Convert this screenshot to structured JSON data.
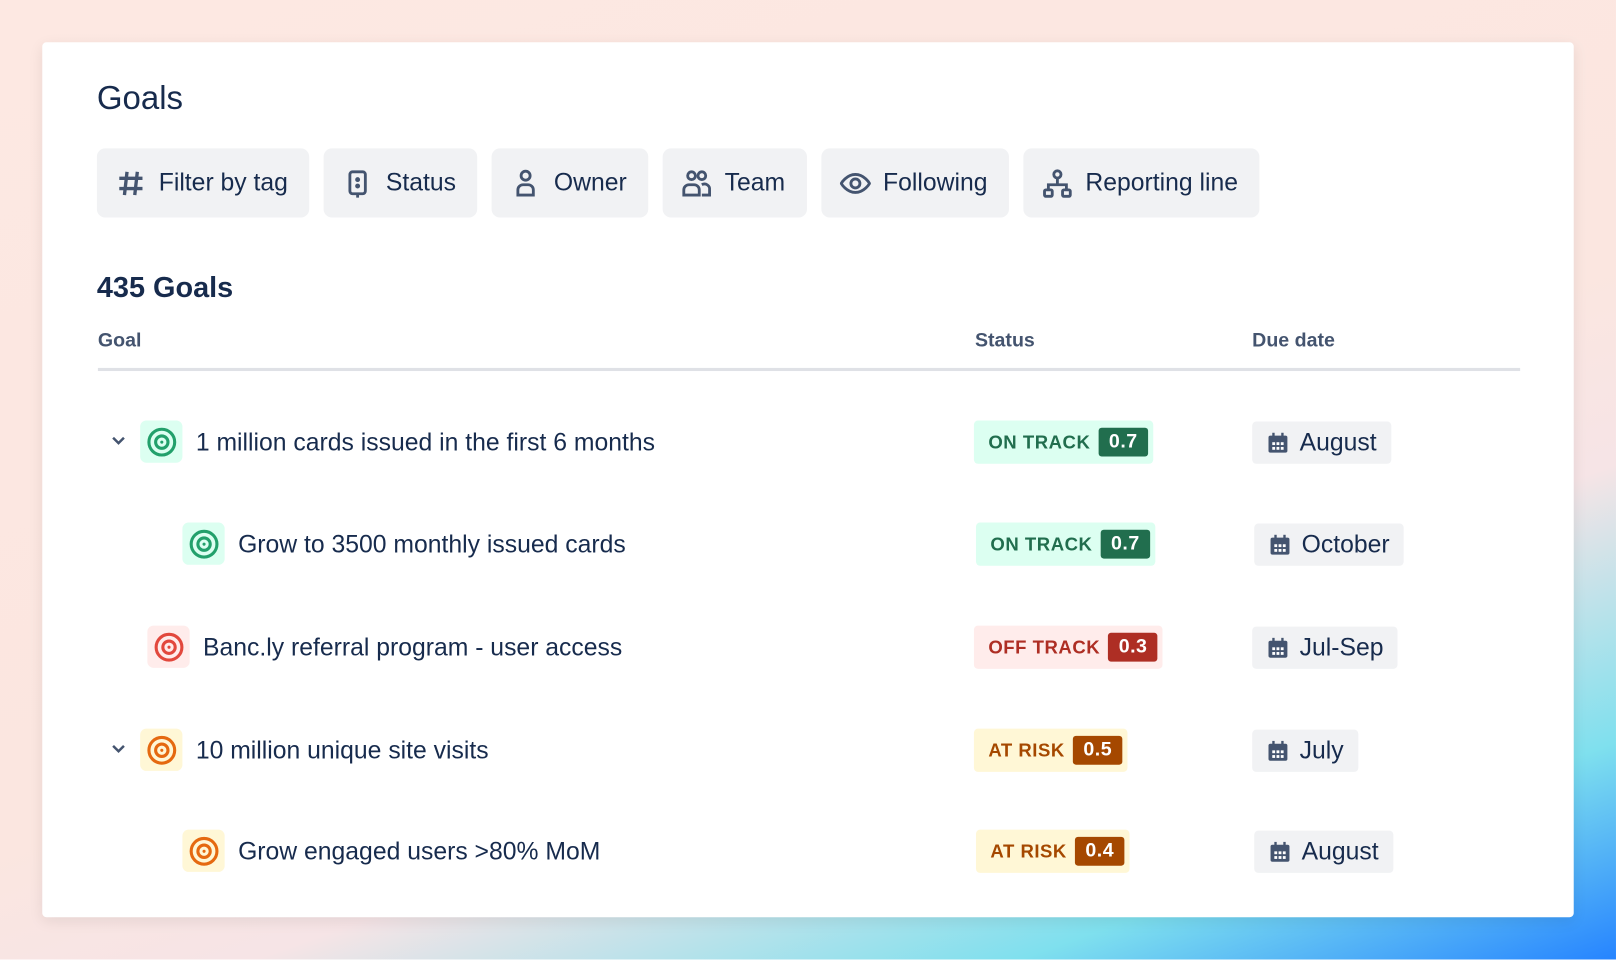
{
  "title": "Goals",
  "filters": [
    {
      "label": "Filter by tag",
      "icon": "hash-icon"
    },
    {
      "label": "Status",
      "icon": "status-icon"
    },
    {
      "label": "Owner",
      "icon": "person-icon"
    },
    {
      "label": "Team",
      "icon": "people-icon"
    },
    {
      "label": "Following",
      "icon": "eye-icon"
    },
    {
      "label": "Reporting line",
      "icon": "hierarchy-icon"
    }
  ],
  "count": "435 Goals",
  "columns": {
    "goal": "Goal",
    "status": "Status",
    "due": "Due date"
  },
  "goals": [
    {
      "name": "1 million cards issued in the first 6 months",
      "status": "ON TRACK",
      "score": "0.7",
      "due": "August",
      "color": "#1f845a",
      "level": 0,
      "expandable": true
    },
    {
      "name": "Grow to 3500 monthly issued cards",
      "status": "ON TRACK",
      "score": "0.7",
      "due": "October",
      "color": "#1f845a",
      "level": 1,
      "expandable": false
    },
    {
      "name": "Banc.ly referral program - user access",
      "status": "OFF TRACK",
      "score": "0.3",
      "due": "Jul-Sep",
      "color": "#c9372c",
      "level": 0.5,
      "expandable": false
    },
    {
      "name": "10 million unique site visits",
      "status": "AT RISK",
      "score": "0.5",
      "due": "July",
      "color": "#b65c02",
      "level": 0,
      "expandable": true
    },
    {
      "name": "Grow engaged users >80% MoM",
      "status": "AT RISK",
      "score": "0.4",
      "due": "August",
      "color": "#b65c02",
      "level": 1,
      "expandable": false
    }
  ],
  "colors": {
    "on_track_bg": "#dcfff1",
    "on_track_fg": "#216e4e",
    "off_track_bg": "#ffeceb",
    "off_track_fg": "#ae2e24",
    "at_risk_bg": "#fff7d6",
    "at_risk_fg": "#a54800"
  }
}
